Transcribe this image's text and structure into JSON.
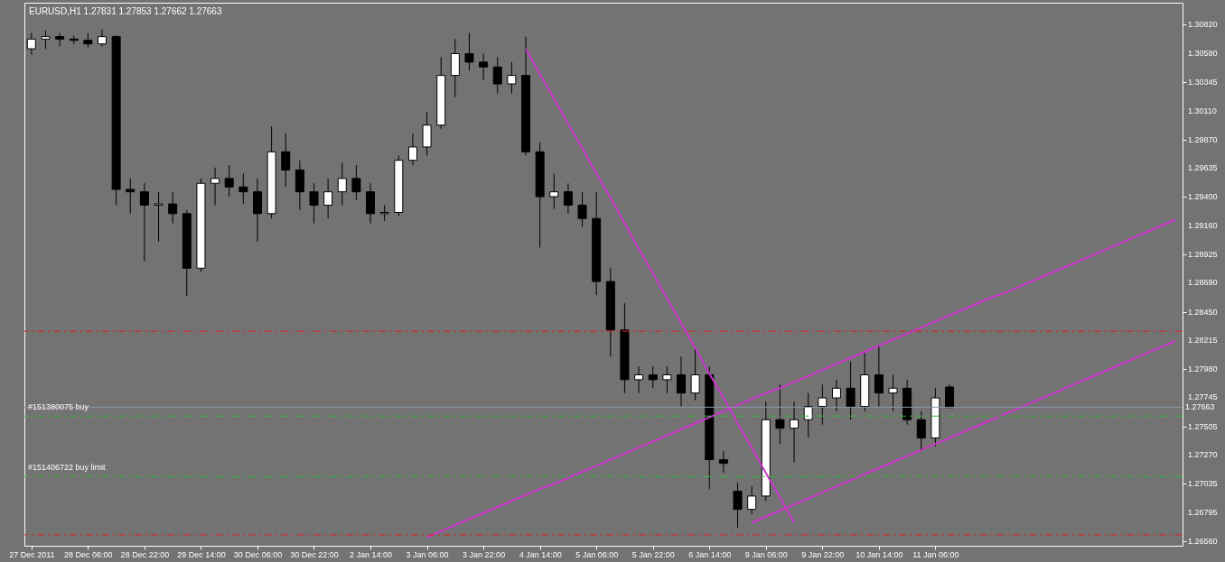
{
  "chart_data": {
    "type": "candlestick",
    "title": "EURUSD,H1  1.27831 1.27853 1.27662 1.27663",
    "categories": [
      "27 Dec 2011",
      null,
      null,
      null,
      "28 Dec 06:00",
      null,
      null,
      null,
      "28 Dec 22:00",
      null,
      null,
      null,
      "29 Dec 14:00",
      null,
      null,
      null,
      "30 Dec 06:00",
      null,
      null,
      null,
      "30 Dec 22:00",
      null,
      null,
      null,
      "2 Jan 14:00",
      null,
      null,
      null,
      "3 Jan 06:00",
      null,
      null,
      null,
      "3 Jan 22:00",
      null,
      null,
      null,
      "4 Jan 14:00",
      null,
      null,
      null,
      "5 Jan 06:00",
      null,
      null,
      null,
      "5 Jan 22:00",
      null,
      null,
      null,
      "6 Jan 14:00",
      null,
      null,
      null,
      "9 Jan 06:00",
      null,
      null,
      null,
      "9 Jan 22:00",
      null,
      null,
      null,
      "10 Jan 14:00",
      null,
      null,
      null,
      "11 Jan 06:00",
      null,
      null,
      null,
      null,
      null,
      null,
      null,
      null,
      null,
      null,
      null,
      null,
      null,
      null,
      null,
      null,
      null
    ],
    "ohlc": [
      [
        1.3062,
        1.3075,
        1.3057,
        1.307
      ],
      [
        1.307,
        1.3077,
        1.3062,
        1.3072
      ],
      [
        1.3072,
        1.3075,
        1.3064,
        1.307
      ],
      [
        1.307,
        1.3073,
        1.3066,
        1.3069
      ],
      [
        1.3069,
        1.3075,
        1.3063,
        1.3066
      ],
      [
        1.3066,
        1.3078,
        1.3064,
        1.3072
      ],
      [
        1.3072,
        1.3073,
        1.2933,
        1.2946
      ],
      [
        1.2946,
        1.2955,
        1.2926,
        1.2944
      ],
      [
        1.2944,
        1.2951,
        1.2887,
        1.2933
      ],
      [
        1.2933,
        1.2944,
        1.2903,
        1.2934
      ],
      [
        1.2934,
        1.2944,
        1.2918,
        1.2926
      ],
      [
        1.2926,
        1.2929,
        1.2858,
        1.2881
      ],
      [
        1.2881,
        1.2955,
        1.2878,
        1.2951
      ],
      [
        1.2951,
        1.2964,
        1.2933,
        1.2955
      ],
      [
        1.2955,
        1.2966,
        1.294,
        1.2948
      ],
      [
        1.2948,
        1.2959,
        1.2934,
        1.2944
      ],
      [
        1.2944,
        1.2955,
        1.2903,
        1.2926
      ],
      [
        1.2926,
        1.2998,
        1.2922,
        1.2977
      ],
      [
        1.2977,
        1.2992,
        1.2948,
        1.2962
      ],
      [
        1.2962,
        1.297,
        1.2929,
        1.2944
      ],
      [
        1.2944,
        1.2951,
        1.2918,
        1.2933
      ],
      [
        1.2933,
        1.2955,
        1.2922,
        1.2944
      ],
      [
        1.2944,
        1.2968,
        1.2933,
        1.2955
      ],
      [
        1.2955,
        1.2966,
        1.2937,
        1.2944
      ],
      [
        1.2944,
        1.2951,
        1.2918,
        1.2926
      ],
      [
        1.2926,
        1.2933,
        1.292,
        1.2927
      ],
      [
        1.2927,
        1.2974,
        1.2924,
        1.297
      ],
      [
        1.297,
        1.2992,
        1.2966,
        1.2981
      ],
      [
        1.2981,
        1.301,
        1.2974,
        1.2999
      ],
      [
        1.2999,
        1.3055,
        1.2996,
        1.304
      ],
      [
        1.304,
        1.307,
        1.3022,
        1.3058
      ],
      [
        1.3058,
        1.3075,
        1.3044,
        1.3051
      ],
      [
        1.3051,
        1.3058,
        1.3036,
        1.3047
      ],
      [
        1.3047,
        1.3055,
        1.3025,
        1.3033
      ],
      [
        1.3033,
        1.3051,
        1.3025,
        1.304
      ],
      [
        1.304,
        1.3072,
        1.2974,
        1.2977
      ],
      [
        1.2977,
        1.2985,
        1.2898,
        1.294
      ],
      [
        1.294,
        1.2959,
        1.293,
        1.2944
      ],
      [
        1.2944,
        1.2951,
        1.2926,
        1.2933
      ],
      [
        1.2933,
        1.2944,
        1.2915,
        1.2922
      ],
      [
        1.2922,
        1.2944,
        1.2859,
        1.287
      ],
      [
        1.287,
        1.2881,
        1.2808,
        1.283
      ],
      [
        1.283,
        1.2852,
        1.2778,
        1.2789
      ],
      [
        1.2789,
        1.28,
        1.2778,
        1.2793
      ],
      [
        1.2793,
        1.28,
        1.2782,
        1.2789
      ],
      [
        1.2789,
        1.28,
        1.2778,
        1.2793
      ],
      [
        1.2793,
        1.2808,
        1.2767,
        1.2778
      ],
      [
        1.2778,
        1.2815,
        1.2772,
        1.2793
      ],
      [
        1.2793,
        1.28,
        1.2699,
        1.2723
      ],
      [
        1.2723,
        1.273,
        1.2712,
        1.272
      ],
      [
        1.2697,
        1.2704,
        1.2667,
        1.2682
      ],
      [
        1.2682,
        1.2701,
        1.2678,
        1.2693
      ],
      [
        1.2693,
        1.2771,
        1.2689,
        1.2756
      ],
      [
        1.2756,
        1.2785,
        1.2736,
        1.2749
      ],
      [
        1.2749,
        1.2771,
        1.2721,
        1.2756
      ],
      [
        1.2756,
        1.2778,
        1.2741,
        1.2767
      ],
      [
        1.2767,
        1.2785,
        1.2752,
        1.2774
      ],
      [
        1.2774,
        1.2789,
        1.2763,
        1.2782
      ],
      [
        1.2782,
        1.2804,
        1.2756,
        1.2767
      ],
      [
        1.2767,
        1.2811,
        1.2763,
        1.2793
      ],
      [
        1.2793,
        1.2817,
        1.2767,
        1.2778
      ],
      [
        1.2778,
        1.2793,
        1.2763,
        1.2782
      ],
      [
        1.2782,
        1.2789,
        1.2752,
        1.2756
      ],
      [
        1.2756,
        1.2763,
        1.273,
        1.2741
      ],
      [
        1.2741,
        1.2782,
        1.2734,
        1.2774
      ],
      [
        1.2783,
        1.2785,
        1.2766,
        1.2766
      ],
      null,
      null,
      null,
      null,
      null,
      null,
      null,
      null,
      null,
      null,
      null,
      null,
      null,
      null,
      null,
      null
    ],
    "series": [
      {
        "type": "line",
        "color": "#cc33cc",
        "values": [
          null,
          null,
          null,
          null,
          null,
          null,
          null,
          null,
          null,
          null,
          null,
          null,
          null,
          null,
          null,
          null,
          null,
          null,
          null,
          null,
          null,
          null,
          null,
          null,
          null,
          null,
          null,
          null,
          null,
          null,
          null,
          null,
          null,
          null,
          null,
          1.3062,
          1.3041,
          1.3021,
          1.3,
          1.298,
          1.2959,
          1.2939,
          1.2918,
          1.2897,
          1.2877,
          1.2856,
          1.2836,
          1.2815,
          1.2794,
          1.2774,
          1.2753,
          1.2733,
          1.2712,
          1.2692,
          1.2671,
          null,
          null,
          null,
          null,
          null,
          null,
          null,
          null,
          null,
          null,
          null,
          null,
          null,
          null,
          null,
          null,
          null,
          null,
          null,
          null,
          null,
          null,
          null,
          null,
          null,
          null,
          null
        ]
      },
      {
        "type": "line",
        "color": "#cc33cc",
        "values": [
          null,
          null,
          null,
          null,
          null,
          null,
          null,
          null,
          null,
          null,
          null,
          null,
          null,
          null,
          null,
          null,
          null,
          null,
          null,
          null,
          null,
          null,
          null,
          null,
          null,
          null,
          null,
          null,
          1.2659,
          1.2664,
          1.2669,
          1.2674,
          1.2679,
          1.2684,
          1.2689,
          1.2694,
          1.2699,
          1.2703,
          1.2708,
          1.2713,
          1.2718,
          1.2723,
          1.2728,
          1.2733,
          1.2738,
          1.2743,
          1.2748,
          1.2753,
          1.2758,
          1.2763,
          1.2768,
          1.2773,
          1.2778,
          1.2782,
          1.2787,
          1.2792,
          1.2797,
          1.2802,
          1.2807,
          1.2812,
          1.2817,
          1.2822,
          1.2827,
          1.2832,
          1.2837,
          1.2842,
          1.2847,
          1.2852,
          1.2857,
          1.2861,
          1.2866,
          1.2871,
          1.2876,
          1.2881,
          1.2886,
          1.2891,
          1.2896,
          1.2901,
          1.2906,
          1.2911,
          1.2916,
          1.2921
        ]
      },
      {
        "type": "line",
        "color": "#cc33cc",
        "values": [
          null,
          null,
          null,
          null,
          null,
          null,
          null,
          null,
          null,
          null,
          null,
          null,
          null,
          null,
          null,
          null,
          null,
          null,
          null,
          null,
          null,
          null,
          null,
          null,
          null,
          null,
          null,
          null,
          null,
          null,
          null,
          null,
          null,
          null,
          null,
          null,
          null,
          null,
          null,
          null,
          null,
          null,
          null,
          null,
          null,
          null,
          null,
          null,
          null,
          null,
          null,
          1.2671,
          1.2676,
          1.2681,
          1.2686,
          1.2691,
          1.2696,
          1.2701,
          1.2706,
          1.2711,
          1.2716,
          1.2721,
          1.2726,
          1.2731,
          1.2736,
          1.2741,
          1.2746,
          1.2751,
          1.2756,
          1.2761,
          1.2766,
          1.2771,
          1.2776,
          1.2781,
          1.2786,
          1.2791,
          1.2796,
          1.2801,
          1.2806,
          1.2811,
          1.2816,
          1.2821
        ]
      }
    ],
    "ref_lines": [
      {
        "axis": "y",
        "value": 1.2829,
        "color": "#dd2222",
        "line_style": "dashed"
      },
      {
        "axis": "y",
        "value": 1.2661,
        "color": "#dd2222",
        "line_style": "dashed"
      },
      {
        "axis": "y",
        "value": 1.2759,
        "label": "#151380075 buy",
        "color": "#33bb33",
        "line_style": "dashed"
      },
      {
        "axis": "y",
        "value": 1.2709,
        "label": "#151406722 buy limit",
        "color": "#33bb33",
        "line_style": "dashed"
      },
      {
        "axis": "y",
        "value": 1.27663,
        "label": "1.27663",
        "color": "#8899aa",
        "line_style": "solid"
      }
    ],
    "ylim": [
      1.2652,
      1.31
    ],
    "yticks": [
      {
        "value": 1.3082,
        "label": "1.30820"
      },
      {
        "value": 1.3058,
        "label": "1.30580"
      },
      {
        "value": 1.30345,
        "label": "1.30345"
      },
      {
        "value": 1.3011,
        "label": "1.30110"
      },
      {
        "value": 1.2987,
        "label": "1.29870"
      },
      {
        "value": 1.29635,
        "label": "1.29635"
      },
      {
        "value": 1.294,
        "label": "1.29400"
      },
      {
        "value": 1.2916,
        "label": "1.29160"
      },
      {
        "value": 1.28925,
        "label": "1.28925"
      },
      {
        "value": 1.2869,
        "label": "1.28690"
      },
      {
        "value": 1.2845,
        "label": "1.28450"
      },
      {
        "value": 1.28215,
        "label": "1.28215"
      },
      {
        "value": 1.2798,
        "label": "1.27980"
      },
      {
        "value": 1.27745,
        "label": "1.27745"
      },
      {
        "value": 1.27505,
        "label": "1.27505"
      },
      {
        "value": 1.2727,
        "label": "1.27270"
      },
      {
        "value": 1.27035,
        "label": "1.27035"
      },
      {
        "value": 1.26795,
        "label": "1.26795"
      },
      {
        "value": 1.2656,
        "label": "1.26560"
      }
    ]
  }
}
